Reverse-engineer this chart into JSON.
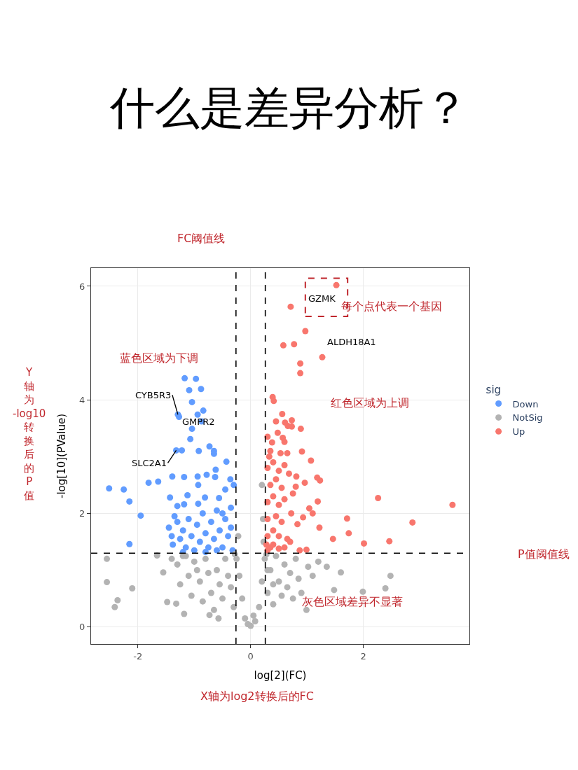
{
  "chart_data": {
    "type": "scatter",
    "title": "什么是差异分析？",
    "xlabel": "log[2](FC)",
    "ylabel": "-log[10](PValue)",
    "legend_title": "sig",
    "xlim": [
      -2.83,
      3.88
    ],
    "ylim": [
      -0.3,
      6.32
    ],
    "xticks": [
      -2,
      0,
      2
    ],
    "yticks": [
      0,
      2,
      4,
      6
    ],
    "grid": true,
    "legend": "right",
    "marker": "circle",
    "series": [
      {
        "name": "Down",
        "color": "#619cff",
        "x": [
          -1.17,
          -0.97,
          -1.09,
          -0.88,
          -1.04,
          -1.29,
          -1.27,
          -0.94,
          -0.84,
          -0.87,
          -1.04,
          -1.07,
          -0.73,
          -0.65,
          -0.65,
          -0.92,
          -1.32,
          -1.22,
          -0.43,
          -2.51,
          -2.25,
          -2.15,
          -1.95,
          -2.15,
          -1.81,
          -1.64,
          -1.39,
          -1.18,
          -0.94,
          -0.78,
          -0.62,
          -0.63,
          -0.36,
          -0.3,
          -0.93,
          -1.43,
          -1.12,
          -0.81,
          -0.56,
          -0.45,
          -1.3,
          -0.93,
          -1.18,
          -1.45,
          -1.4,
          -1.38,
          -1.3,
          -1.25,
          -1.2,
          -1.15,
          -1.1,
          -1.05,
          -1.0,
          -0.95,
          -0.9,
          -0.85,
          -0.8,
          -0.75,
          -0.7,
          -0.65,
          -0.6,
          -0.55,
          -0.5,
          -0.45,
          -0.4,
          -0.35,
          -0.32,
          -1.35,
          -0.6,
          -0.8,
          -1.2,
          -0.5,
          -0.35
        ],
        "values": [
          4.38,
          4.37,
          4.17,
          4.19,
          3.96,
          3.74,
          3.7,
          3.74,
          3.81,
          3.62,
          3.49,
          3.31,
          3.18,
          3.1,
          3.05,
          3.1,
          3.11,
          3.11,
          2.91,
          2.44,
          2.42,
          2.21,
          1.96,
          1.46,
          2.54,
          2.56,
          2.65,
          2.64,
          2.65,
          2.68,
          2.77,
          2.64,
          2.6,
          2.5,
          2.5,
          2.28,
          2.32,
          2.28,
          2.27,
          2.42,
          2.13,
          2.17,
          2.16,
          1.75,
          1.6,
          1.45,
          1.85,
          1.55,
          1.7,
          1.4,
          1.9,
          1.6,
          1.35,
          1.8,
          1.5,
          2.0,
          1.65,
          1.4,
          1.85,
          1.55,
          2.05,
          1.7,
          1.4,
          1.9,
          1.6,
          1.75,
          1.35,
          1.95,
          1.35,
          1.32,
          1.32,
          2.0,
          2.1
        ]
      },
      {
        "name": "NotSig",
        "color": "#b3b3b3",
        "x": [
          -2.55,
          -2.55,
          -2.36,
          -2.41,
          -2.1,
          -1.66,
          -1.55,
          -1.48,
          -1.32,
          -1.18,
          -0.73,
          -0.57,
          1.35,
          1.6,
          2.48,
          2.39,
          1.99,
          1.02,
          0.99,
          1.48,
          -1.4,
          -1.3,
          -1.2,
          -1.1,
          -1.0,
          -0.9,
          -0.8,
          -0.7,
          -0.6,
          -0.5,
          -0.4,
          -0.3,
          -0.25,
          -1.25,
          -1.05,
          -0.85,
          -0.65,
          -0.95,
          -0.75,
          -0.55,
          -0.45,
          -0.35,
          -0.2,
          -0.15,
          -0.1,
          0,
          0.08,
          0.15,
          0.2,
          0.25,
          0.3,
          0.35,
          0.4,
          0.45,
          0.5,
          0.55,
          0.6,
          0.65,
          0.7,
          0.75,
          0.8,
          0.85,
          0.9,
          1.1,
          1.2,
          0.3,
          0.4,
          -0.05,
          0.05,
          -1.15,
          0.28,
          -0.28,
          0.22,
          0.2,
          -0.22,
          0.23
        ],
        "values": [
          1.2,
          0.79,
          0.47,
          0.35,
          0.68,
          1.26,
          0.96,
          0.44,
          0.41,
          0.23,
          0.21,
          0.15,
          1.06,
          0.96,
          0.9,
          0.68,
          0.62,
          1.06,
          0.3,
          0.65,
          1.2,
          1.1,
          1.25,
          0.9,
          1.15,
          0.8,
          1.2,
          0.6,
          1.0,
          0.5,
          0.9,
          0.35,
          1.2,
          0.75,
          0.55,
          0.45,
          0.3,
          1.0,
          0.95,
          0.75,
          1.2,
          0.7,
          0.9,
          0.5,
          0.15,
          0.02,
          0.1,
          0.35,
          0.8,
          1.2,
          0.6,
          1.0,
          0.4,
          1.25,
          0.8,
          0.55,
          1.1,
          0.7,
          0.95,
          0.5,
          1.2,
          0.85,
          0.6,
          0.9,
          1.15,
          1.0,
          0.75,
          0.05,
          0.2,
          1.25,
          1.28,
          1.28,
          1.9,
          2.5,
          1.6,
          1.5
        ]
      },
      {
        "name": "Up",
        "color": "#f8766d",
        "x": [
          1.52,
          0.71,
          0.97,
          0.58,
          0.77,
          1.27,
          0.88,
          0.88,
          0.39,
          0.41,
          0.56,
          0.45,
          0.61,
          0.73,
          0.66,
          0.73,
          0.89,
          0.48,
          0.57,
          0.6,
          0.53,
          0.65,
          0.91,
          1.07,
          1.18,
          1.23,
          0.96,
          0.81,
          0.8,
          1.19,
          2.26,
          3.58,
          1.04,
          1.1,
          0.93,
          1.71,
          2.87,
          0.83,
          1.22,
          1.74,
          1.46,
          2.01,
          2.46,
          0.87,
          0.99,
          0.3,
          0.35,
          0.4,
          0.5,
          0.6,
          0.3,
          0.4,
          0.5,
          0.65,
          0.3,
          0.45,
          0.55,
          0.3,
          0.4,
          0.5,
          0.6,
          0.35,
          0.45,
          0.55,
          0.3,
          0.4,
          0.5,
          0.6,
          0.35,
          0.3,
          0.7,
          0.72,
          0.75,
          0.68,
          0.28,
          0.33,
          0.38
        ],
        "values": [
          6.02,
          5.64,
          5.21,
          4.96,
          4.98,
          4.75,
          4.64,
          4.47,
          4.05,
          3.98,
          3.75,
          3.62,
          3.6,
          3.64,
          3.54,
          3.53,
          3.49,
          3.42,
          3.33,
          3.26,
          3.06,
          3.06,
          3.09,
          2.93,
          2.63,
          2.58,
          2.54,
          2.65,
          2.47,
          2.21,
          2.27,
          2.15,
          2.09,
          2.0,
          1.93,
          1.91,
          1.84,
          1.81,
          1.75,
          1.65,
          1.55,
          1.47,
          1.51,
          1.35,
          1.36,
          1.35,
          1.4,
          1.45,
          1.38,
          1.4,
          1.6,
          1.7,
          1.6,
          1.55,
          1.9,
          1.95,
          1.85,
          2.2,
          2.3,
          2.15,
          2.25,
          2.5,
          2.6,
          2.45,
          2.8,
          2.9,
          2.75,
          2.85,
          3.1,
          3.35,
          1.5,
          2.0,
          2.35,
          2.7,
          1.45,
          3.0,
          3.25
        ]
      }
    ],
    "ref_lines": [
      {
        "axis": "x",
        "value": -0.26,
        "color": "#000000",
        "line_style": "dashed"
      },
      {
        "axis": "x",
        "value": 0.26,
        "color": "#000000",
        "line_style": "dashed"
      },
      {
        "axis": "y",
        "value": 1.3,
        "color": "#000000",
        "line_style": "dashed"
      }
    ],
    "annotations": [
      {
        "text": "GZMK",
        "x": 1.52,
        "y": 6.02
      },
      {
        "text": "ALDH18A1",
        "x": 1.27,
        "y": 4.75
      },
      {
        "text": "CYB5R3",
        "x": -1.29,
        "y": 3.74
      },
      {
        "text": "GMPR2",
        "x": -0.87,
        "y": 3.62
      },
      {
        "text": "SLC2A1",
        "x": -1.32,
        "y": 3.11
      },
      "FC阈值线",
      "每个点代表一个基因",
      "蓝色区域为下调",
      "红色区域为上调",
      "Y轴为-log10转换后的P值",
      "P值阈值线",
      "灰色区域差异不显著",
      "X轴为log2转换后的FC"
    ]
  }
}
